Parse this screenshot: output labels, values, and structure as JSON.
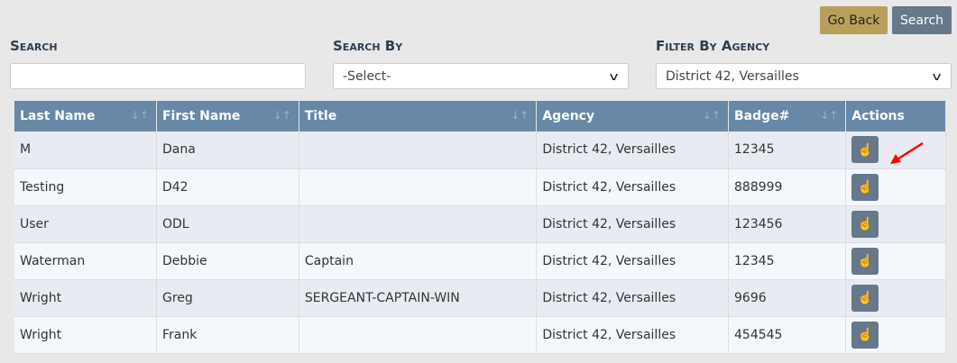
{
  "toolbar": {
    "go_back": "Go Back",
    "search": "Search"
  },
  "filters": {
    "search_label": "Search",
    "search_value": "",
    "search_by_label": "Search By",
    "search_by_value": "-Select-",
    "agency_label": "Filter By Agency",
    "agency_value": "District 42, Versailles"
  },
  "table": {
    "headers": [
      "Last Name",
      "First Name",
      "Title",
      "Agency",
      "Badge#",
      "Actions"
    ],
    "rows": [
      [
        "M",
        "Dana",
        "",
        "District 42, Versailles",
        "12345"
      ],
      [
        "Testing",
        "D42",
        "",
        "District 42, Versailles",
        "888999"
      ],
      [
        "User",
        "ODL",
        "",
        "District 42, Versailles",
        "123456"
      ],
      [
        "Waterman",
        "Debbie",
        "Captain",
        "District 42, Versailles",
        "12345"
      ],
      [
        "Wright",
        "Greg",
        "SERGEANT-CAPTAIN-WIN",
        "District 42, Versailles",
        "9696"
      ],
      [
        "Wright",
        "Frank",
        "",
        "District 42, Versailles",
        "454545"
      ]
    ]
  },
  "colors": {
    "accent_gold": "#b8a05a",
    "slate": "#66788a",
    "header": "#6788a6",
    "annotation": "#ff0000"
  }
}
